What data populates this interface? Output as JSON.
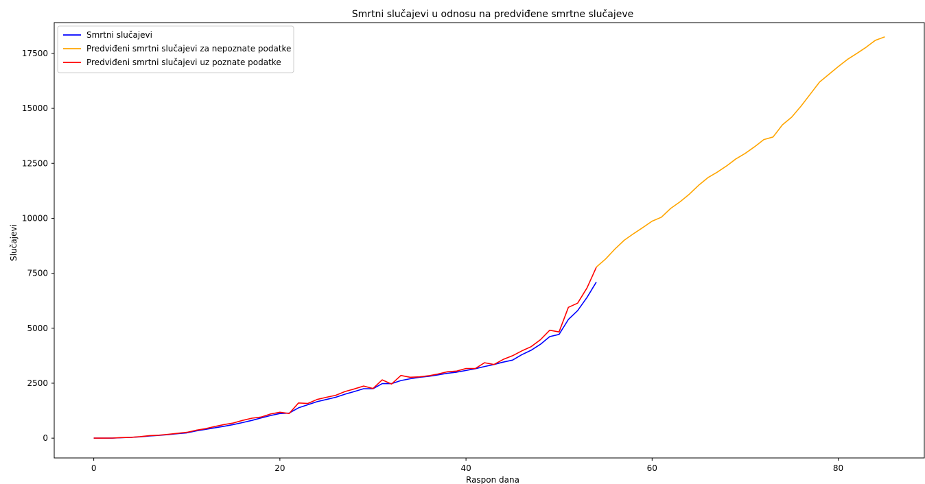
{
  "chart_data": {
    "type": "line",
    "title": "Smrtni slučajevi u odnosu na predviđene smrtne slučajeve",
    "xlabel": "Raspon dana",
    "ylabel": "Slučajevi",
    "xlim": [
      -4.25,
      89.25
    ],
    "ylim": [
      -900,
      18900
    ],
    "xticks": [
      0,
      20,
      40,
      60,
      80
    ],
    "yticks": [
      0,
      2500,
      5000,
      7500,
      10000,
      12500,
      15000,
      17500
    ],
    "grid": false,
    "legend_position": "top-left",
    "series": [
      {
        "name": "Smrtni slučajevi",
        "color": "#0000ff",
        "x": [
          0,
          1,
          2,
          3,
          4,
          5,
          6,
          7,
          8,
          9,
          10,
          11,
          12,
          13,
          14,
          15,
          16,
          17,
          18,
          19,
          20,
          21,
          22,
          23,
          24,
          25,
          26,
          27,
          28,
          29,
          30,
          31,
          32,
          33,
          34,
          35,
          36,
          37,
          38,
          39,
          40,
          41,
          42,
          43,
          44,
          45,
          46,
          47,
          48,
          49,
          50,
          51,
          52,
          53,
          54
        ],
        "y": [
          0,
          0,
          2,
          20,
          35,
          60,
          100,
          125,
          160,
          205,
          240,
          330,
          400,
          470,
          540,
          620,
          710,
          810,
          920,
          1030,
          1120,
          1140,
          1380,
          1520,
          1660,
          1760,
          1860,
          2000,
          2120,
          2250,
          2250,
          2480,
          2480,
          2620,
          2700,
          2770,
          2810,
          2880,
          2950,
          3000,
          3080,
          3160,
          3260,
          3350,
          3460,
          3550,
          3800,
          4000,
          4270,
          4620,
          4720,
          5400,
          5800,
          6400,
          7100
        ]
      },
      {
        "name": "Predviđeni smrtni slučajevi za nepoznate podatke",
        "color": "#ffa500",
        "x": [
          54,
          55,
          56,
          57,
          58,
          59,
          60,
          61,
          62,
          63,
          64,
          65,
          66,
          67,
          68,
          69,
          70,
          71,
          72,
          73,
          74,
          75,
          76,
          77,
          78,
          79,
          80,
          81,
          82,
          83,
          84,
          85
        ],
        "y": [
          7780,
          8150,
          8600,
          9000,
          9300,
          9580,
          9870,
          10050,
          10450,
          10750,
          11100,
          11500,
          11850,
          12100,
          12380,
          12700,
          12950,
          13250,
          13580,
          13700,
          14250,
          14600,
          15100,
          15650,
          16200,
          16550,
          16900,
          17230,
          17500,
          17780,
          18100,
          18250
        ]
      },
      {
        "name": "Predviđeni smrtni slučajevi uz poznate podatke",
        "color": "#ff0000",
        "x": [
          0,
          1,
          2,
          3,
          4,
          5,
          6,
          7,
          8,
          9,
          10,
          11,
          12,
          13,
          14,
          15,
          16,
          17,
          18,
          19,
          20,
          21,
          22,
          23,
          24,
          25,
          26,
          27,
          28,
          29,
          30,
          31,
          32,
          33,
          34,
          35,
          36,
          37,
          38,
          39,
          40,
          41,
          42,
          43,
          44,
          45,
          46,
          47,
          48,
          49,
          50,
          51,
          52,
          53,
          54
        ],
        "y": [
          0,
          0,
          5,
          25,
          40,
          70,
          115,
          135,
          175,
          220,
          265,
          360,
          430,
          530,
          620,
          690,
          810,
          910,
          960,
          1100,
          1180,
          1120,
          1600,
          1580,
          1760,
          1860,
          1950,
          2120,
          2240,
          2370,
          2260,
          2650,
          2460,
          2850,
          2770,
          2790,
          2840,
          2920,
          3020,
          3050,
          3170,
          3170,
          3430,
          3350,
          3580,
          3750,
          3970,
          4160,
          4480,
          4910,
          4830,
          5950,
          6140,
          6830,
          7770
        ]
      }
    ]
  }
}
